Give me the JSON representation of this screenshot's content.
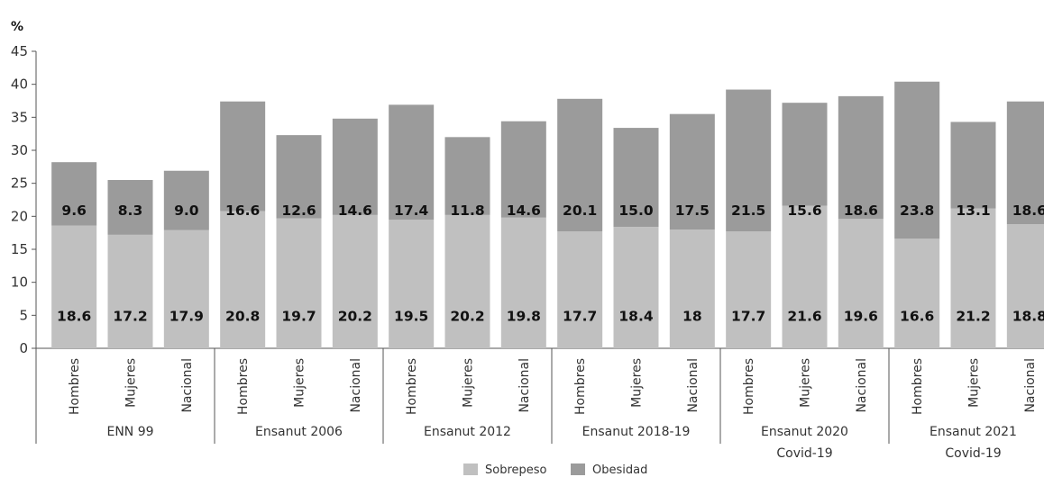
{
  "chart_data": {
    "type": "bar",
    "stacked": true,
    "unit": "%",
    "ylim": [
      0,
      45
    ],
    "yticks": [
      0,
      5,
      10,
      15,
      20,
      25,
      30,
      35,
      40,
      45
    ],
    "groups": [
      {
        "label": [
          "ENN 99"
        ],
        "categories": [
          "Hombres",
          "Mujeres",
          "Nacional"
        ]
      },
      {
        "label": [
          "Ensanut 2006"
        ],
        "categories": [
          "Hombres",
          "Mujeres",
          "Nacional"
        ]
      },
      {
        "label": [
          "Ensanut 2012"
        ],
        "categories": [
          "Hombres",
          "Mujeres",
          "Nacional"
        ]
      },
      {
        "label": [
          "Ensanut 2018-19"
        ],
        "categories": [
          "Hombres",
          "Mujeres",
          "Nacional"
        ]
      },
      {
        "label": [
          "Ensanut 2020",
          "Covid-19"
        ],
        "categories": [
          "Hombres",
          "Mujeres",
          "Nacional"
        ]
      },
      {
        "label": [
          "Ensanut 2021",
          "Covid-19"
        ],
        "categories": [
          "Hombres",
          "Mujeres",
          "Nacional"
        ]
      }
    ],
    "series": [
      {
        "name": "Sobrepeso",
        "color": "#c0c0c0",
        "values": [
          18.6,
          17.2,
          17.9,
          20.8,
          19.7,
          20.2,
          19.5,
          20.2,
          19.8,
          17.7,
          18.4,
          18,
          17.7,
          21.6,
          19.6,
          16.6,
          21.2,
          18.8
        ],
        "labels": [
          "18.6",
          "17.2",
          "17.9",
          "20.8",
          "19.7",
          "20.2",
          "19.5",
          "20.2",
          "19.8",
          "17.7",
          "18.4",
          "18",
          "17.7",
          "21.6",
          "19.6",
          "16.6",
          "21.2",
          "18.8"
        ]
      },
      {
        "name": "Obesidad",
        "color": "#9b9b9b",
        "values": [
          9.6,
          8.3,
          9.0,
          16.6,
          12.6,
          14.6,
          17.4,
          11.8,
          14.6,
          20.1,
          15.0,
          17.5,
          21.5,
          15.6,
          18.6,
          23.8,
          13.1,
          18.6
        ],
        "labels": [
          "9.6",
          "8.3",
          "9.0",
          "16.6",
          "12.6",
          "14.6",
          "17.4",
          "11.8",
          "14.6",
          "20.1",
          "15.0",
          "17.5",
          "21.5",
          "15.6",
          "18.6",
          "23.8",
          "13.1",
          "18.6"
        ]
      }
    ],
    "legend_position": "bottom-center",
    "grid": false
  }
}
